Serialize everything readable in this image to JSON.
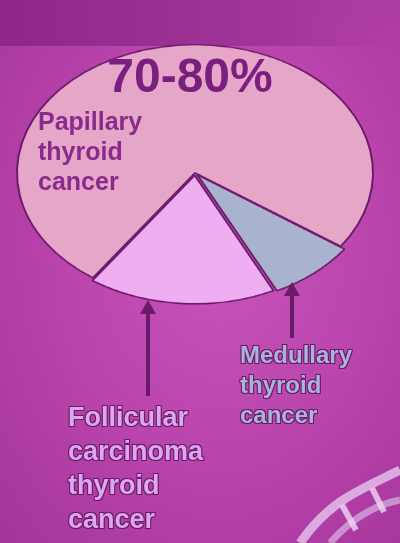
{
  "chart_data": {
    "type": "pie",
    "categories": [
      "Papillary thyroid cancer",
      "Medullary thyroid cancer",
      "Follicular carcinoma thyroid cancer"
    ],
    "values": [
      75,
      8,
      17
    ],
    "value_labels": [
      "70-80%",
      null,
      null
    ],
    "colors": [
      "#e6a6c8",
      "#a9b3cf",
      "#efaef2"
    ],
    "data_labels": true
  }
}
